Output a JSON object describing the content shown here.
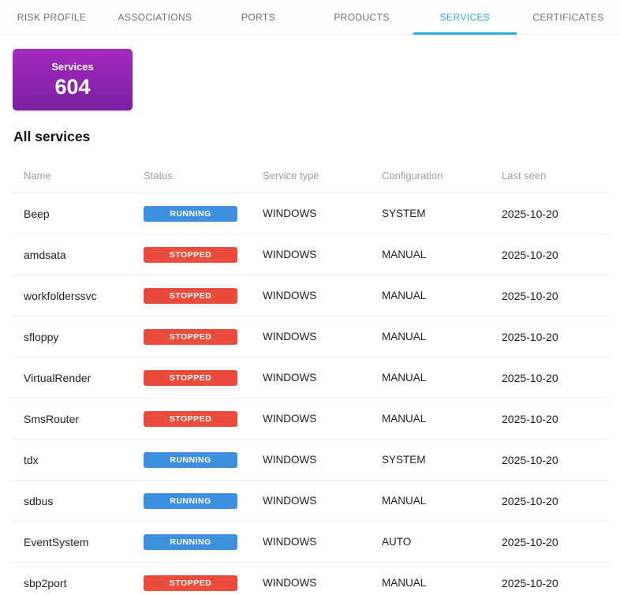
{
  "tabs": [
    {
      "label": "RISK PROFILE",
      "active": false
    },
    {
      "label": "ASSOCIATIONS",
      "active": false
    },
    {
      "label": "PORTS",
      "active": false
    },
    {
      "label": "PRODUCTS",
      "active": false
    },
    {
      "label": "SERVICES",
      "active": true
    },
    {
      "label": "CERTIFICATES",
      "active": false
    }
  ],
  "summary_card": {
    "label": "Services",
    "value": "604"
  },
  "section_title": "All services",
  "table": {
    "columns": [
      "Name",
      "Status",
      "Service type",
      "Configuration",
      "Last seen"
    ],
    "rows": [
      {
        "name": "Beep",
        "status": "RUNNING",
        "service_type": "WINDOWS",
        "configuration": "SYSTEM",
        "last_seen": "2025-10-20"
      },
      {
        "name": "amdsata",
        "status": "STOPPED",
        "service_type": "WINDOWS",
        "configuration": "MANUAL",
        "last_seen": "2025-10-20"
      },
      {
        "name": "workfolderssvc",
        "status": "STOPPED",
        "service_type": "WINDOWS",
        "configuration": "MANUAL",
        "last_seen": "2025-10-20"
      },
      {
        "name": "sfloppy",
        "status": "STOPPED",
        "service_type": "WINDOWS",
        "configuration": "MANUAL",
        "last_seen": "2025-10-20"
      },
      {
        "name": "VirtualRender",
        "status": "STOPPED",
        "service_type": "WINDOWS",
        "configuration": "MANUAL",
        "last_seen": "2025-10-20"
      },
      {
        "name": "SmsRouter",
        "status": "STOPPED",
        "service_type": "WINDOWS",
        "configuration": "MANUAL",
        "last_seen": "2025-10-20"
      },
      {
        "name": "tdx",
        "status": "RUNNING",
        "service_type": "WINDOWS",
        "configuration": "SYSTEM",
        "last_seen": "2025-10-20"
      },
      {
        "name": "sdbus",
        "status": "RUNNING",
        "service_type": "WINDOWS",
        "configuration": "MANUAL",
        "last_seen": "2025-10-20"
      },
      {
        "name": "EventSystem",
        "status": "RUNNING",
        "service_type": "WINDOWS",
        "configuration": "AUTO",
        "last_seen": "2025-10-20"
      },
      {
        "name": "sbp2port",
        "status": "STOPPED",
        "service_type": "WINDOWS",
        "configuration": "MANUAL",
        "last_seen": "2025-10-20"
      }
    ]
  },
  "colors": {
    "accent_tab": "#2ea9e3",
    "running_badge": "#3d8fe0",
    "stopped_badge": "#ea4b3b",
    "card_gradient_top": "#a429c0",
    "card_gradient_bottom": "#7b1fa2"
  }
}
